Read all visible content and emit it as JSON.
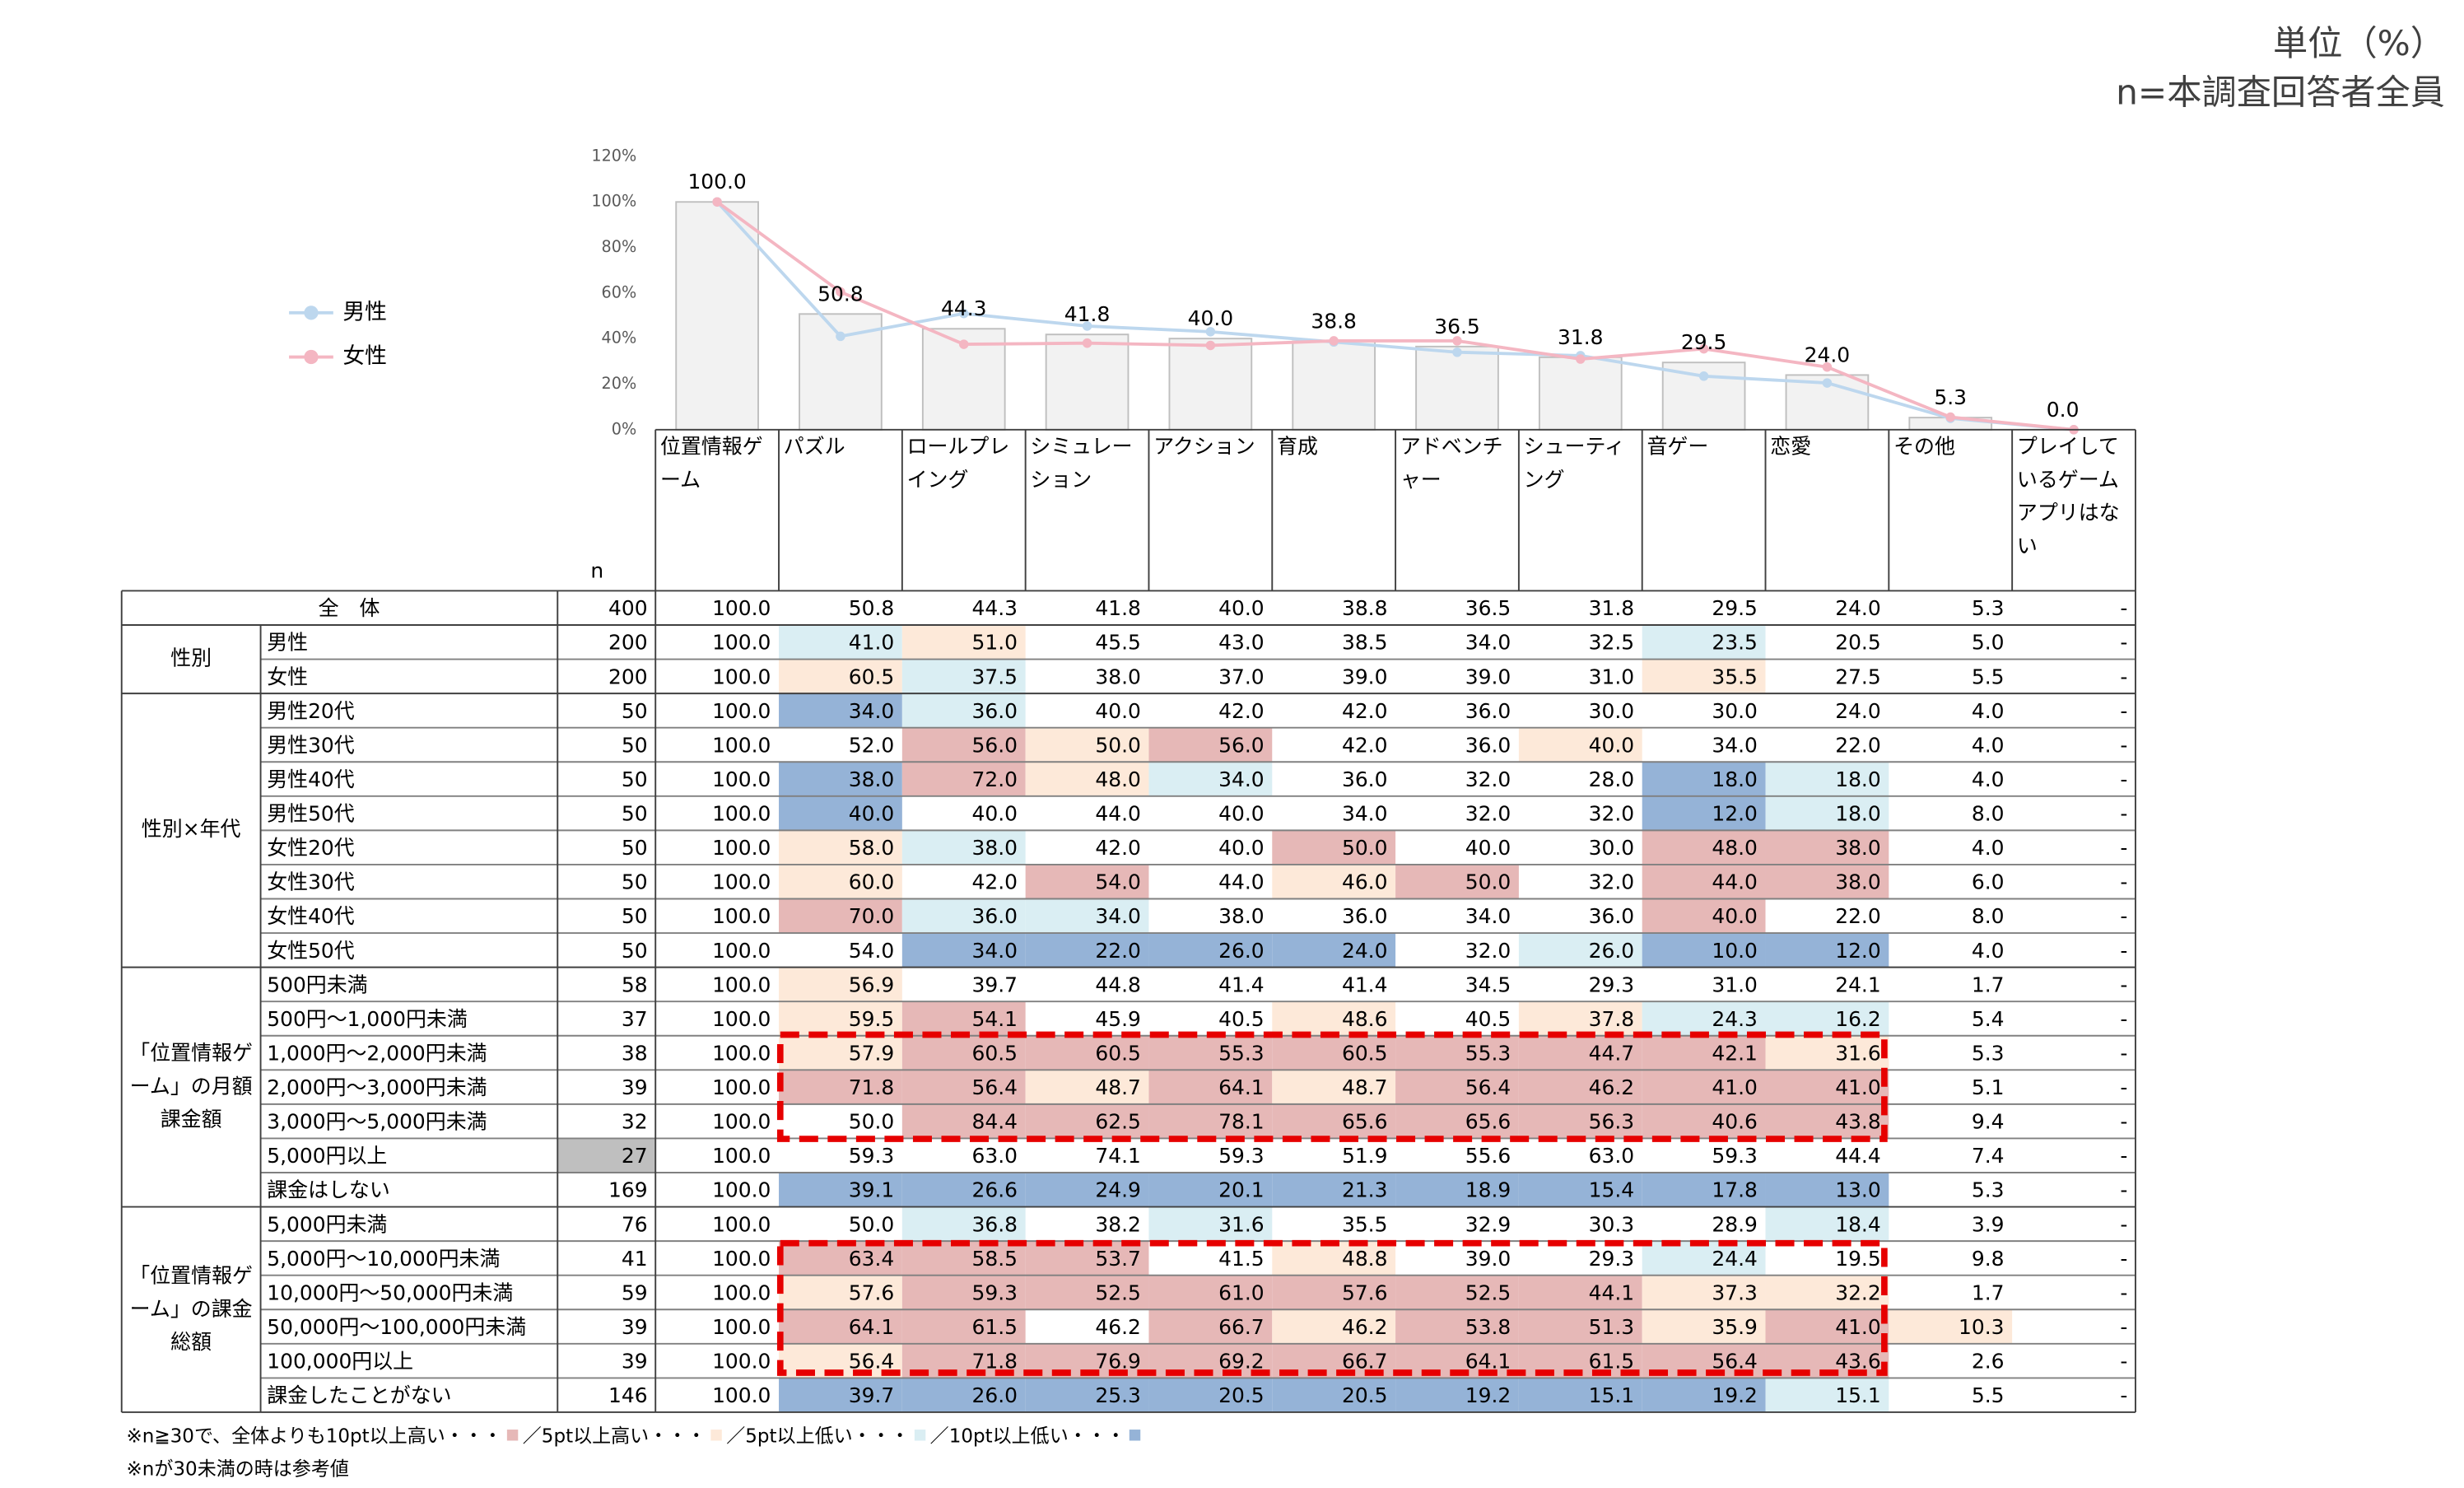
{
  "header": {
    "unit": "単位（%）",
    "base": "n=本調査回答者全員"
  },
  "chart_data": {
    "type": "bar",
    "categories": [
      "位置情報ゲーム",
      "パズル",
      "ロールプレイング",
      "シミュレーション",
      "アクション",
      "育成",
      "アドベンチャー",
      "シューティング",
      "音ゲー",
      "恋愛",
      "その他",
      "プレイしているゲームアプリはない"
    ],
    "values": [
      100,
      50.8,
      44.3,
      41.8,
      40,
      38.8,
      36.5,
      31.8,
      29.5,
      24,
      5.3,
      0
    ],
    "value_labels": [
      "100.0",
      "50.8",
      "44.3",
      "41.8",
      "40.0",
      "38.8",
      "36.5",
      "31.8",
      "29.5",
      "24.0",
      "5.3",
      "0.0"
    ],
    "color": "#f2f2f2",
    "ylim": [
      0,
      120
    ],
    "yticks": [
      {
        "value": 0,
        "label": "0%"
      },
      {
        "value": 20,
        "label": "20%"
      },
      {
        "value": 40,
        "label": "40%"
      },
      {
        "value": 60,
        "label": "60%"
      },
      {
        "value": 80,
        "label": "80%"
      },
      {
        "value": 100,
        "label": "100%"
      },
      {
        "value": 120,
        "label": "120%"
      }
    ],
    "series": [
      {
        "name": "男性",
        "color": "#bdd7ee",
        "values": [
          100,
          41,
          51,
          45.5,
          43,
          38.5,
          34,
          32.5,
          23.5,
          20.5,
          5,
          0
        ]
      },
      {
        "name": "女性",
        "color": "#f4b6c2",
        "values": [
          100,
          60.5,
          37.5,
          38,
          37,
          39,
          39,
          31,
          35.5,
          27.5,
          5.5,
          0
        ]
      }
    ]
  },
  "table": {
    "n_header": "n",
    "groups": [
      {
        "label": "全　体",
        "rows": [
          {
            "n": "400",
            "values": [
              "100.0",
              "50.8",
              "44.3",
              "41.8",
              "40.0",
              "38.8",
              "36.5",
              "31.8",
              "29.5",
              "24.0",
              "5.3",
              "-"
            ],
            "shades": [
              null,
              null,
              null,
              null,
              null,
              null,
              null,
              null,
              null,
              null,
              null,
              null
            ]
          }
        ]
      },
      {
        "label": "性別",
        "rows": [
          {
            "label": "男性",
            "n": "200",
            "values": [
              "100.0",
              "41.0",
              "51.0",
              "45.5",
              "43.0",
              "38.5",
              "34.0",
              "32.5",
              "23.5",
              "20.5",
              "5.0",
              "-"
            ],
            "shades": [
              null,
              "#daeef3",
              "#fde9d9",
              null,
              null,
              null,
              null,
              null,
              "#daeef3",
              null,
              null,
              null
            ]
          },
          {
            "label": "女性",
            "n": "200",
            "values": [
              "100.0",
              "60.5",
              "37.5",
              "38.0",
              "37.0",
              "39.0",
              "39.0",
              "31.0",
              "35.5",
              "27.5",
              "5.5",
              "-"
            ],
            "shades": [
              null,
              "#fde9d9",
              "#daeef3",
              null,
              null,
              null,
              null,
              null,
              "#fde9d9",
              null,
              null,
              null
            ]
          }
        ]
      },
      {
        "label": "性別×年代",
        "rows": [
          {
            "label": "男性20代",
            "n": "50",
            "values": [
              "100.0",
              "34.0",
              "36.0",
              "40.0",
              "42.0",
              "42.0",
              "36.0",
              "30.0",
              "30.0",
              "24.0",
              "4.0",
              "-"
            ],
            "shades": [
              null,
              "#95b3d7",
              "#daeef3",
              null,
              null,
              null,
              null,
              null,
              null,
              null,
              null,
              null
            ]
          },
          {
            "label": "男性30代",
            "n": "50",
            "values": [
              "100.0",
              "52.0",
              "56.0",
              "50.0",
              "56.0",
              "42.0",
              "36.0",
              "40.0",
              "34.0",
              "22.0",
              "4.0",
              "-"
            ],
            "shades": [
              null,
              null,
              "#e6b8b7",
              "#fde9d9",
              "#e6b8b7",
              null,
              null,
              "#fde9d9",
              null,
              null,
              null,
              null
            ]
          },
          {
            "label": "男性40代",
            "n": "50",
            "values": [
              "100.0",
              "38.0",
              "72.0",
              "48.0",
              "34.0",
              "36.0",
              "32.0",
              "28.0",
              "18.0",
              "18.0",
              "4.0",
              "-"
            ],
            "shades": [
              null,
              "#95b3d7",
              "#e6b8b7",
              "#fde9d9",
              "#daeef3",
              null,
              null,
              null,
              "#95b3d7",
              "#daeef3",
              null,
              null
            ]
          },
          {
            "label": "男性50代",
            "n": "50",
            "values": [
              "100.0",
              "40.0",
              "40.0",
              "44.0",
              "40.0",
              "34.0",
              "32.0",
              "32.0",
              "12.0",
              "18.0",
              "8.0",
              "-"
            ],
            "shades": [
              null,
              "#95b3d7",
              null,
              null,
              null,
              null,
              null,
              null,
              "#95b3d7",
              "#daeef3",
              null,
              null
            ]
          },
          {
            "label": "女性20代",
            "n": "50",
            "values": [
              "100.0",
              "58.0",
              "38.0",
              "42.0",
              "40.0",
              "50.0",
              "40.0",
              "30.0",
              "48.0",
              "38.0",
              "4.0",
              "-"
            ],
            "shades": [
              null,
              "#fde9d9",
              "#daeef3",
              null,
              null,
              "#e6b8b7",
              null,
              null,
              "#e6b8b7",
              "#e6b8b7",
              null,
              null
            ]
          },
          {
            "label": "女性30代",
            "n": "50",
            "values": [
              "100.0",
              "60.0",
              "42.0",
              "54.0",
              "44.0",
              "46.0",
              "50.0",
              "32.0",
              "44.0",
              "38.0",
              "6.0",
              "-"
            ],
            "shades": [
              null,
              "#fde9d9",
              null,
              "#e6b8b7",
              null,
              "#fde9d9",
              "#e6b8b7",
              null,
              "#e6b8b7",
              "#e6b8b7",
              null,
              null
            ]
          },
          {
            "label": "女性40代",
            "n": "50",
            "values": [
              "100.0",
              "70.0",
              "36.0",
              "34.0",
              "38.0",
              "36.0",
              "34.0",
              "36.0",
              "40.0",
              "22.0",
              "8.0",
              "-"
            ],
            "shades": [
              null,
              "#e6b8b7",
              "#daeef3",
              "#daeef3",
              null,
              null,
              null,
              null,
              "#e6b8b7",
              null,
              null,
              null
            ]
          },
          {
            "label": "女性50代",
            "n": "50",
            "values": [
              "100.0",
              "54.0",
              "34.0",
              "22.0",
              "26.0",
              "24.0",
              "32.0",
              "26.0",
              "10.0",
              "12.0",
              "4.0",
              "-"
            ],
            "shades": [
              null,
              null,
              "#95b3d7",
              "#95b3d7",
              "#95b3d7",
              "#95b3d7",
              null,
              "#daeef3",
              "#95b3d7",
              "#95b3d7",
              null,
              null
            ]
          }
        ]
      },
      {
        "label": "「位置情報ゲーム」の月額課金額",
        "rows": [
          {
            "label": "500円未満",
            "n": "58",
            "values": [
              "100.0",
              "56.9",
              "39.7",
              "44.8",
              "41.4",
              "41.4",
              "34.5",
              "29.3",
              "31.0",
              "24.1",
              "1.7",
              "-"
            ],
            "shades": [
              null,
              "#fde9d9",
              null,
              null,
              null,
              null,
              null,
              null,
              null,
              null,
              null,
              null
            ]
          },
          {
            "label": "500円～1,000円未満",
            "n": "37",
            "values": [
              "100.0",
              "59.5",
              "54.1",
              "45.9",
              "40.5",
              "48.6",
              "40.5",
              "37.8",
              "24.3",
              "16.2",
              "5.4",
              "-"
            ],
            "shades": [
              null,
              "#fde9d9",
              "#e6b8b7",
              null,
              null,
              "#fde9d9",
              null,
              "#fde9d9",
              "#daeef3",
              "#daeef3",
              null,
              null
            ]
          },
          {
            "label": "1,000円～2,000円未満",
            "n": "38",
            "values": [
              "100.0",
              "57.9",
              "60.5",
              "60.5",
              "55.3",
              "60.5",
              "55.3",
              "44.7",
              "42.1",
              "31.6",
              "5.3",
              "-"
            ],
            "shades": [
              null,
              "#fde9d9",
              "#e6b8b7",
              "#e6b8b7",
              "#e6b8b7",
              "#e6b8b7",
              "#e6b8b7",
              "#e6b8b7",
              "#e6b8b7",
              "#fde9d9",
              null,
              null
            ]
          },
          {
            "label": "2,000円～3,000円未満",
            "n": "39",
            "values": [
              "100.0",
              "71.8",
              "56.4",
              "48.7",
              "64.1",
              "48.7",
              "56.4",
              "46.2",
              "41.0",
              "41.0",
              "5.1",
              "-"
            ],
            "shades": [
              null,
              "#e6b8b7",
              "#e6b8b7",
              "#fde9d9",
              "#e6b8b7",
              "#fde9d9",
              "#e6b8b7",
              "#e6b8b7",
              "#e6b8b7",
              "#e6b8b7",
              null,
              null
            ]
          },
          {
            "label": "3,000円～5,000円未満",
            "n": "32",
            "values": [
              "100.0",
              "50.0",
              "84.4",
              "62.5",
              "78.1",
              "65.6",
              "65.6",
              "56.3",
              "40.6",
              "43.8",
              "9.4",
              "-"
            ],
            "shades": [
              null,
              null,
              "#e6b8b7",
              "#e6b8b7",
              "#e6b8b7",
              "#e6b8b7",
              "#e6b8b7",
              "#e6b8b7",
              "#e6b8b7",
              "#e6b8b7",
              null,
              null
            ]
          },
          {
            "label": "5,000円以上",
            "n": "27",
            "n_color": "#bfbfbf",
            "values": [
              "100.0",
              "59.3",
              "63.0",
              "74.1",
              "59.3",
              "51.9",
              "55.6",
              "63.0",
              "59.3",
              "44.4",
              "7.4",
              "-"
            ],
            "shades": [
              null,
              null,
              null,
              null,
              null,
              null,
              null,
              null,
              null,
              null,
              null,
              null
            ]
          },
          {
            "label": "課金はしない",
            "n": "169",
            "values": [
              "100.0",
              "39.1",
              "26.6",
              "24.9",
              "20.1",
              "21.3",
              "18.9",
              "15.4",
              "17.8",
              "13.0",
              "5.3",
              "-"
            ],
            "shades": [
              null,
              "#95b3d7",
              "#95b3d7",
              "#95b3d7",
              "#95b3d7",
              "#95b3d7",
              "#95b3d7",
              "#95b3d7",
              "#95b3d7",
              "#95b3d7",
              null,
              null
            ]
          }
        ]
      },
      {
        "label": "「位置情報ゲーム」の課金総額",
        "rows": [
          {
            "label": "5,000円未満",
            "n": "76",
            "values": [
              "100.0",
              "50.0",
              "36.8",
              "38.2",
              "31.6",
              "35.5",
              "32.9",
              "30.3",
              "28.9",
              "18.4",
              "3.9",
              "-"
            ],
            "shades": [
              null,
              null,
              "#daeef3",
              null,
              "#daeef3",
              null,
              null,
              null,
              null,
              "#daeef3",
              null,
              null
            ]
          },
          {
            "label": "5,000円～10,000円未満",
            "n": "41",
            "values": [
              "100.0",
              "63.4",
              "58.5",
              "53.7",
              "41.5",
              "48.8",
              "39.0",
              "29.3",
              "24.4",
              "19.5",
              "9.8",
              "-"
            ],
            "shades": [
              null,
              "#e6b8b7",
              "#e6b8b7",
              "#e6b8b7",
              null,
              "#fde9d9",
              null,
              null,
              "#daeef3",
              null,
              null,
              null
            ]
          },
          {
            "label": "10,000円～50,000円未満",
            "n": "59",
            "values": [
              "100.0",
              "57.6",
              "59.3",
              "52.5",
              "61.0",
              "57.6",
              "52.5",
              "44.1",
              "37.3",
              "32.2",
              "1.7",
              "-"
            ],
            "shades": [
              null,
              "#fde9d9",
              "#e6b8b7",
              "#e6b8b7",
              "#e6b8b7",
              "#e6b8b7",
              "#e6b8b7",
              "#e6b8b7",
              "#fde9d9",
              "#fde9d9",
              null,
              null
            ]
          },
          {
            "label": "50,000円～100,000円未満",
            "n": "39",
            "values": [
              "100.0",
              "64.1",
              "61.5",
              "46.2",
              "66.7",
              "46.2",
              "53.8",
              "51.3",
              "35.9",
              "41.0",
              "10.3",
              "-"
            ],
            "shades": [
              null,
              "#e6b8b7",
              "#e6b8b7",
              null,
              "#e6b8b7",
              "#fde9d9",
              "#e6b8b7",
              "#e6b8b7",
              "#fde9d9",
              "#e6b8b7",
              "#fde9d9",
              null
            ]
          },
          {
            "label": "100,000円以上",
            "n": "39",
            "values": [
              "100.0",
              "56.4",
              "71.8",
              "76.9",
              "69.2",
              "66.7",
              "64.1",
              "61.5",
              "56.4",
              "43.6",
              "2.6",
              "-"
            ],
            "shades": [
              null,
              "#fde9d9",
              "#e6b8b7",
              "#e6b8b7",
              "#e6b8b7",
              "#e6b8b7",
              "#e6b8b7",
              "#e6b8b7",
              "#e6b8b7",
              "#e6b8b7",
              null,
              null
            ]
          },
          {
            "label": "課金したことがない",
            "n": "146",
            "values": [
              "100.0",
              "39.7",
              "26.0",
              "25.3",
              "20.5",
              "20.5",
              "19.2",
              "15.1",
              "19.2",
              "15.1",
              "5.5",
              "-"
            ],
            "shades": [
              null,
              "#95b3d7",
              "#95b3d7",
              "#95b3d7",
              "#95b3d7",
              "#95b3d7",
              "#95b3d7",
              "#95b3d7",
              "#95b3d7",
              "#daeef3",
              null,
              null
            ]
          }
        ]
      }
    ]
  },
  "notes": {
    "legend": [
      {
        "text": "※n≧30で、全体よりも10pt以上高い・・・",
        "color": "#e6b8b7"
      },
      {
        "text": "／5pt以上高い・・・",
        "color": "#fde9d9"
      },
      {
        "text": "／5pt以上低い・・・",
        "color": "#daeef3"
      },
      {
        "text": "／10pt以上低い・・・",
        "color": "#95b3d7"
      }
    ],
    "small_n": "※nが30未満の時は参考値"
  }
}
